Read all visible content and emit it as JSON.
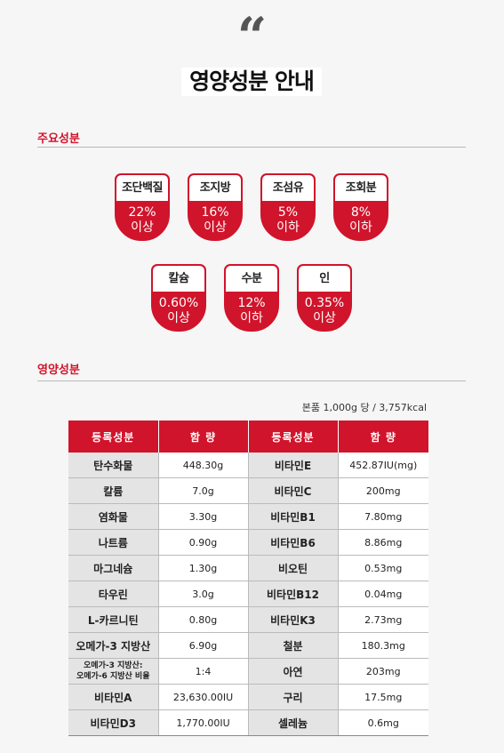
{
  "title": "영양성분 안내",
  "quote_mark": "“",
  "section1": {
    "title": "주요성분"
  },
  "badges": [
    {
      "name": "조단백질",
      "value": "22%",
      "cond": "이상"
    },
    {
      "name": "조지방",
      "value": "16%",
      "cond": "이상"
    },
    {
      "name": "조섬유",
      "value": "5%",
      "cond": "이하"
    },
    {
      "name": "조회분",
      "value": "8%",
      "cond": "이하"
    },
    {
      "name": "칼슘",
      "value": "0.60%",
      "cond": "이상"
    },
    {
      "name": "수분",
      "value": "12%",
      "cond": "이하"
    },
    {
      "name": "인",
      "value": "0.35%",
      "cond": "이상"
    }
  ],
  "section2": {
    "title": "영양성분"
  },
  "per_note": "본품 1,000g 당 / 3,757kcal",
  "table": {
    "headers": [
      "등록성분",
      "함  량",
      "등록성분",
      "함  량"
    ],
    "rows": [
      [
        "탄수화물",
        "448.30g",
        "비타민E",
        "452.87IU(mg)"
      ],
      [
        "칼륨",
        "7.0g",
        "비타민C",
        "200mg"
      ],
      [
        "염화물",
        "3.30g",
        "비타민B1",
        "7.80mg"
      ],
      [
        "나트륨",
        "0.90g",
        "비타민B6",
        "8.86mg"
      ],
      [
        "마그네슘",
        "1.30g",
        "비오틴",
        "0.53mg"
      ],
      [
        "타우린",
        "3.0g",
        "비타민B12",
        "0.04mg"
      ],
      [
        "L-카르니틴",
        "0.80g",
        "비타민K3",
        "2.73mg"
      ],
      [
        "오메가-3 지방산",
        "6.90g",
        "철분",
        "180.3mg"
      ],
      [
        "오메가-3 지방산:\n오메가-6 지방산 비율",
        "1:4",
        "아연",
        "203mg"
      ],
      [
        "비타민A",
        "23,630.00IU",
        "구리",
        "17.5mg"
      ],
      [
        "비타민D3",
        "1,770.00IU",
        "셀레늄",
        "0.6mg"
      ]
    ]
  },
  "colors": {
    "accent": "#d0142b",
    "label_bg": "#e4e4e4",
    "page_bg": "#f6f6f6"
  }
}
